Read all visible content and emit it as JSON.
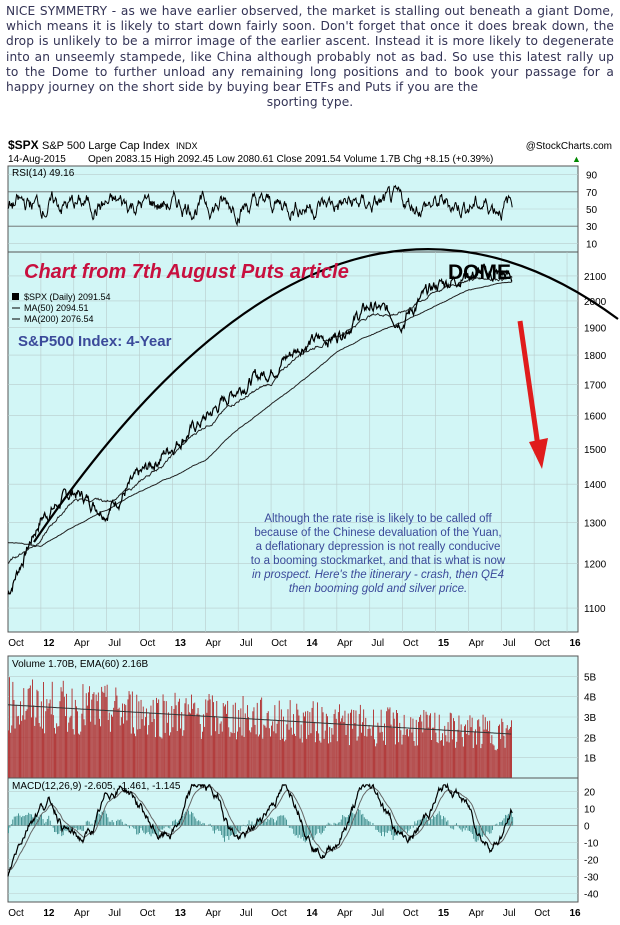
{
  "intro": {
    "text": "NICE SYMMETRY - as we have earlier observed, the market is stalling out beneath a giant Dome, which means it is likely to start down fairly soon. Don't forget that once it does break down, the drop is unlikely to be a mirror image of the earlier ascent. Instead it is more likely to degenerate into an unseemly stampede, like China although probably not as bad. So use this latest rally up to the Dome to further unload any remaining long positions and to book your passage for a happy journey on the short side by buying bear ETFs and Puts if you are the",
    "last_line": "sporting type."
  },
  "header": {
    "symbol": "$SPX",
    "name": "S&P 500 Large Cap Index",
    "exchange": "INDX",
    "credit": "@StockCharts.com",
    "date": "14-Aug-2015",
    "quote": "Open 2083.15  High 2092.45  Low 2080.61  Close 2091.54  Volume 1.7B  Chg +8.15 (+0.39%)",
    "quote_arrow": "▲"
  },
  "colors": {
    "panel_bg": "#d2f6f6",
    "grid": "#b9cccc",
    "price_line": "#000000",
    "ma": "#222222",
    "volume": "#b02a2a",
    "macd_hist": "#3a8a8a",
    "annotation_red": "#c8103f",
    "arrow_red": "#e01c1c",
    "annotation_blue": "#3b4a9a"
  },
  "annotations": {
    "puts_article": "Chart from 7th August Puts article",
    "dome": "DOME",
    "index_label": "S&P500 Index: 4-Year",
    "commentary_lines": [
      "Although the rate rise is likely to be called off",
      "because of the Chinese devaluation of the Yuan,",
      "a deflationary depression is not really conducive",
      "to a booming stockmarket, and that is what is now",
      "in prospect. Here's the itinerary - crash, then QE4",
      "then booming gold and silver price."
    ]
  },
  "chart_data": [
    {
      "type": "line",
      "panel": "RSI",
      "legend": "RSI(14) 49.16",
      "y_ticks": [
        10,
        30,
        50,
        70,
        90
      ],
      "ylim": [
        0,
        100
      ],
      "reference_lines": [
        30,
        70
      ],
      "note": "oscillates mostly between 30 and 70"
    },
    {
      "type": "line",
      "panel": "Price",
      "legend": [
        "$SPX (Daily) 2091.54",
        "MA(50) 2094.51",
        "MA(200) 2076.54"
      ],
      "y_ticks": [
        1100,
        1200,
        1300,
        1400,
        1500,
        1600,
        1700,
        1800,
        1900,
        2000,
        2100
      ],
      "y_tick_labels": [
        "1100",
        "1200",
        "1300",
        "1400",
        "1500",
        "1600",
        "1700",
        "1800",
        "1900",
        "2000",
        "2100"
      ],
      "scale": "log",
      "ylim": [
        1050,
        2200
      ],
      "x_tick_labels": [
        "Oct",
        "12",
        "Apr",
        "Jul",
        "Oct",
        "13",
        "Apr",
        "Jul",
        "Oct",
        "14",
        "Apr",
        "Jul",
        "Oct",
        "15",
        "Apr",
        "Jul",
        "Oct",
        "16"
      ],
      "x": [
        0,
        3,
        6,
        9,
        12,
        15,
        18,
        21,
        24,
        27,
        30,
        33,
        36,
        39,
        42,
        45,
        46
      ],
      "series": [
        {
          "name": "$SPX (Daily) 2091.54",
          "values": [
            1130,
            1310,
            1380,
            1330,
            1420,
            1510,
            1590,
            1690,
            1750,
            1840,
            1870,
            1980,
            1930,
            2060,
            2110,
            2105,
            2091
          ]
        },
        {
          "name": "MA(50) 2094.51",
          "values": [
            1200,
            1260,
            1360,
            1350,
            1400,
            1480,
            1570,
            1650,
            1700,
            1820,
            1870,
            1950,
            1960,
            2040,
            2090,
            2100,
            2094
          ]
        },
        {
          "name": "MA(200) 2076.54",
          "values": [
            1250,
            1240,
            1290,
            1330,
            1380,
            1420,
            1470,
            1560,
            1640,
            1720,
            1810,
            1870,
            1920,
            1980,
            2040,
            2070,
            2076
          ]
        }
      ]
    },
    {
      "type": "bar",
      "panel": "Volume",
      "legend": "Volume 1.70B, EMA(60) 2.16B",
      "y_ticks": [
        1,
        2,
        3,
        4,
        5
      ],
      "y_tick_labels": [
        "1B",
        "2B",
        "3B",
        "4B",
        "5B"
      ],
      "ylim": [
        0,
        6
      ]
    },
    {
      "type": "line",
      "panel": "MACD",
      "legend": "MACD(12,26,9) -2.605, -1.461, -1.145",
      "y_ticks": [
        -40,
        -30,
        -20,
        -10,
        0,
        10,
        20
      ],
      "ylim": [
        -45,
        28
      ]
    }
  ]
}
